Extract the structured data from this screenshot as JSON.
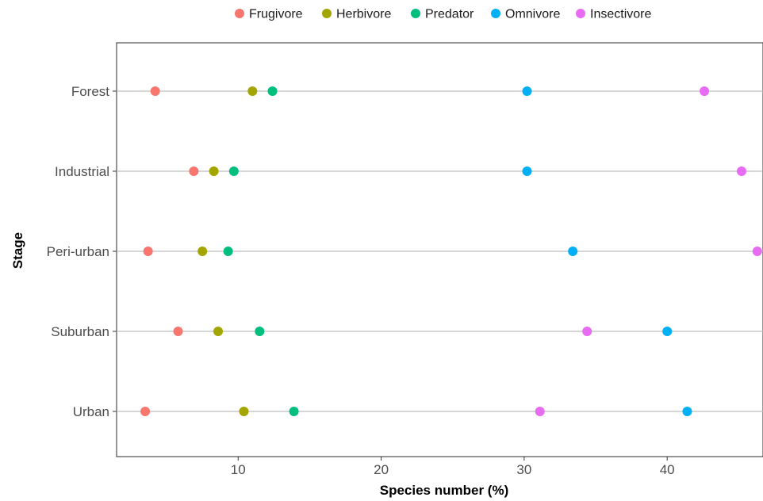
{
  "chart_data": {
    "type": "scatter",
    "xlabel": "Species number (%)",
    "ylabel": "Stage",
    "xlim": [
      1.5,
      46.7
    ],
    "x_ticks": [
      10,
      20,
      30,
      40
    ],
    "categories": [
      "Urban",
      "Suburban",
      "Peri-urban",
      "Industrial",
      "Forest"
    ],
    "grid": "horizontal",
    "legend_position": "top",
    "series": [
      {
        "name": "Frugivore",
        "color": "#F8766D",
        "values": [
          3.5,
          5.8,
          3.7,
          6.9,
          4.2
        ]
      },
      {
        "name": "Herbivore",
        "color": "#A3A500",
        "values": [
          10.4,
          8.6,
          7.5,
          8.3,
          11.0
        ]
      },
      {
        "name": "Predator",
        "color": "#00BF7D",
        "values": [
          13.9,
          11.5,
          9.3,
          9.7,
          12.4
        ]
      },
      {
        "name": "Omnivore",
        "color": "#00B0F6",
        "values": [
          41.4,
          40.0,
          33.4,
          30.2,
          30.2
        ]
      },
      {
        "name": "Insectivore",
        "color": "#E76BF3",
        "values": [
          31.1,
          34.4,
          46.3,
          45.2,
          42.6
        ]
      }
    ]
  }
}
